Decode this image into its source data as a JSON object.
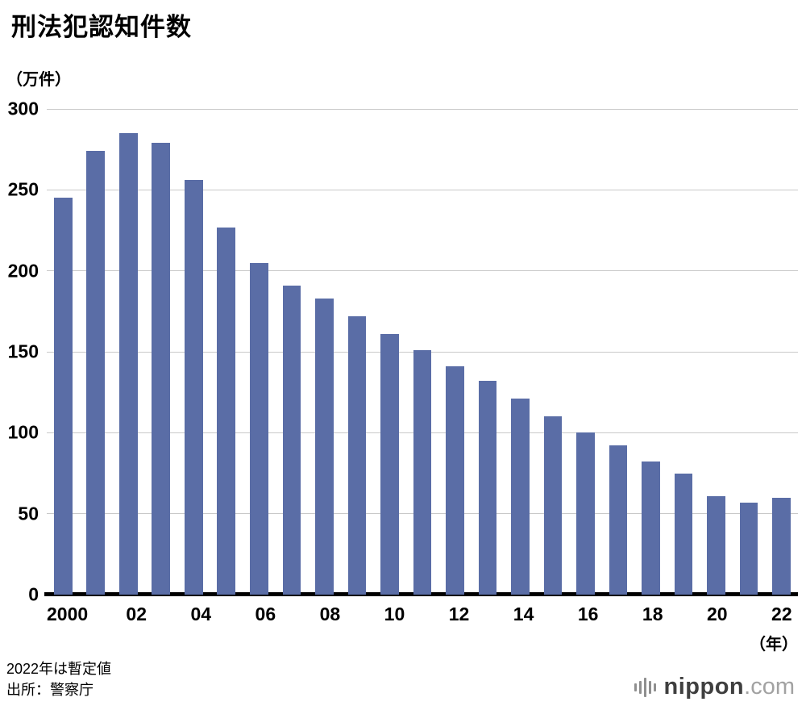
{
  "title": "刑法犯認知件数",
  "y_axis_unit": "（万件）",
  "x_axis_unit": "（年）",
  "footer": {
    "note": "2022年は暫定値",
    "source": "出所：警察庁"
  },
  "logo": {
    "name": "nippon",
    "tld": ".com"
  },
  "chart_data": {
    "type": "bar",
    "title": "刑法犯認知件数",
    "ylabel": "（万件）",
    "xlabel": "（年）",
    "ylim": [
      0,
      300
    ],
    "yticks": [
      0,
      50,
      100,
      150,
      200,
      250,
      300
    ],
    "grid": true,
    "legend": false,
    "bar_color": "#5a6da6",
    "categories": [
      "2000",
      "2001",
      "2002",
      "2003",
      "2004",
      "2005",
      "2006",
      "2007",
      "2008",
      "2009",
      "2010",
      "2011",
      "2012",
      "2013",
      "2014",
      "2015",
      "2016",
      "2017",
      "2018",
      "2019",
      "2020",
      "2021",
      "2022"
    ],
    "xtick_labels": [
      "2000",
      "02",
      "04",
      "06",
      "08",
      "10",
      "12",
      "14",
      "16",
      "18",
      "20",
      "22"
    ],
    "values": [
      245,
      274,
      285,
      279,
      256,
      227,
      205,
      191,
      183,
      172,
      161,
      151,
      141,
      132,
      121,
      110,
      100,
      92,
      82,
      75,
      61,
      57,
      60
    ]
  }
}
